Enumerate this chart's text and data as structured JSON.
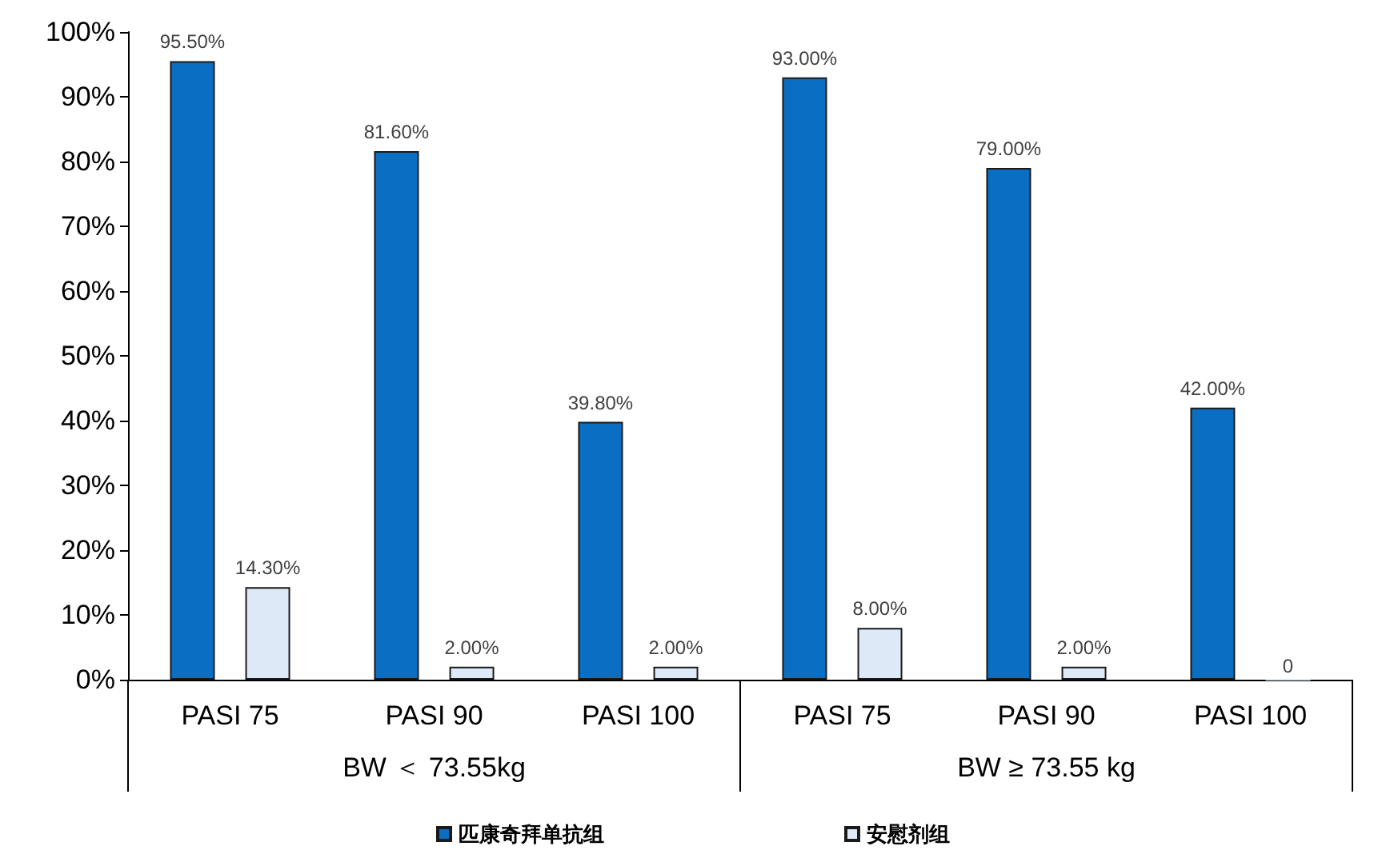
{
  "chart_data": {
    "type": "bar",
    "categories": [
      "PASI 75",
      "PASI 90",
      "PASI 100",
      "PASI 75",
      "PASI 90",
      "PASI 100"
    ],
    "series": [
      {
        "name": "匹康奇拜单抗组",
        "color": "#0a6fc2",
        "values": [
          95.5,
          81.6,
          39.8,
          93.0,
          79.0,
          42.0
        ],
        "value_labels": [
          "95.50%",
          "81.60%",
          "39.80%",
          "93.00%",
          "79.00%",
          "42.00%"
        ]
      },
      {
        "name": "安慰剂组",
        "color": "#dde9f7",
        "values": [
          14.3,
          2.0,
          2.0,
          8.0,
          2.0,
          0
        ],
        "value_labels": [
          "14.30%",
          "2.00%",
          "2.00%",
          "8.00%",
          "2.00%",
          "0"
        ]
      }
    ],
    "annotations": [
      "BW ＜ 73.55kg",
      "BW ≥ 73.55 kg"
    ],
    "ylim": [
      0,
      100
    ],
    "yticks": [
      {
        "value": 0,
        "label": "0%"
      },
      {
        "value": 10,
        "label": "10%"
      },
      {
        "value": 20,
        "label": "20%"
      },
      {
        "value": 30,
        "label": "30%"
      },
      {
        "value": 40,
        "label": "40%"
      },
      {
        "value": 50,
        "label": "50%"
      },
      {
        "value": 60,
        "label": "60%"
      },
      {
        "value": 70,
        "label": "70%"
      },
      {
        "value": 80,
        "label": "80%"
      },
      {
        "value": 90,
        "label": "90%"
      },
      {
        "value": 100,
        "label": "100%"
      }
    ],
    "grid": false,
    "legend": "bottom"
  }
}
